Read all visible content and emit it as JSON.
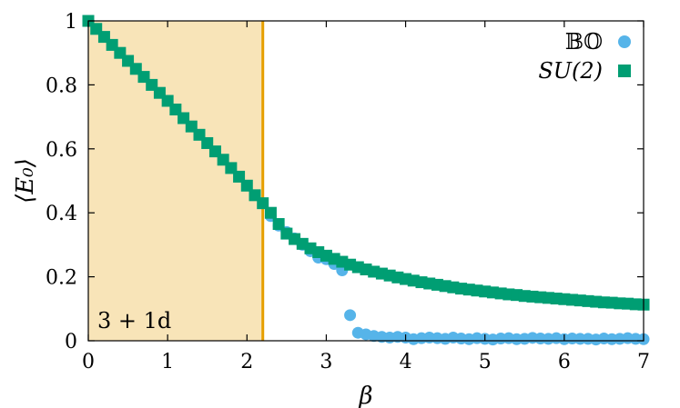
{
  "chart_data": {
    "type": "scatter",
    "title": "",
    "xlabel": "β",
    "ylabel": "⟨E₀⟩",
    "xlim": [
      0,
      7
    ],
    "ylim": [
      0,
      1
    ],
    "xticks": [
      "0",
      "1",
      "2",
      "3",
      "4",
      "5",
      "6",
      "7"
    ],
    "yticks": [
      "0",
      "0.2",
      "0.4",
      "0.6",
      "0.8",
      "1"
    ],
    "grid": false,
    "legend_placement": "top-right",
    "shaded_region": {
      "x_from": 0,
      "x_to": 2.2,
      "label": "3 + 1d",
      "fill": "#f8e4b8",
      "line_color": "#e69f00"
    },
    "series": [
      {
        "name": "𝔹𝕆",
        "marker": "circle",
        "color": "#56b4e9",
        "x": [
          2.3,
          2.4,
          2.5,
          2.6,
          2.7,
          2.8,
          2.9,
          3.0,
          3.1,
          3.2,
          3.3,
          3.4,
          3.5,
          3.6,
          3.7,
          3.8,
          3.9,
          4.0,
          4.1,
          4.2,
          4.3,
          4.4,
          4.5,
          4.6,
          4.7,
          4.8,
          4.9,
          5.0,
          5.1,
          5.2,
          5.3,
          5.4,
          5.5,
          5.6,
          5.7,
          5.8,
          5.9,
          6.0,
          6.1,
          6.2,
          6.3,
          6.4,
          6.5,
          6.6,
          6.7,
          6.8,
          6.9,
          7.0
        ],
        "y": [
          0.39,
          0.36,
          0.34,
          0.32,
          0.3,
          0.28,
          0.26,
          0.255,
          0.24,
          0.22,
          0.08,
          0.025,
          0.02,
          0.015,
          0.012,
          0.01,
          0.012,
          0.01,
          0.005,
          0.008,
          0.01,
          0.008,
          0.006,
          0.01,
          0.007,
          0.005,
          0.008,
          0.006,
          0.004,
          0.007,
          0.008,
          0.005,
          0.006,
          0.009,
          0.007,
          0.006,
          0.008,
          0.005,
          0.007,
          0.006,
          0.006,
          0.004,
          0.007,
          0.005,
          0.006,
          0.008,
          0.006,
          0.005
        ]
      },
      {
        "name": "SU(2)",
        "marker": "square",
        "color": "#009e73",
        "x": [
          0.0,
          0.1,
          0.2,
          0.3,
          0.4,
          0.5,
          0.6,
          0.7,
          0.8,
          0.9,
          1.0,
          1.1,
          1.2,
          1.3,
          1.4,
          1.5,
          1.6,
          1.7,
          1.8,
          1.9,
          2.0,
          2.1,
          2.2,
          2.3,
          2.4,
          2.5,
          2.6,
          2.7,
          2.8,
          2.9,
          3.0,
          3.1,
          3.2,
          3.3,
          3.4,
          3.5,
          3.6,
          3.7,
          3.8,
          3.9,
          4.0,
          4.1,
          4.2,
          4.3,
          4.4,
          4.5,
          4.6,
          4.7,
          4.8,
          4.9,
          5.0,
          5.1,
          5.2,
          5.3,
          5.4,
          5.5,
          5.6,
          5.7,
          5.8,
          5.9,
          6.0,
          6.1,
          6.2,
          6.3,
          6.4,
          6.5,
          6.6,
          6.7,
          6.8,
          6.9,
          7.0
        ],
        "y": [
          1.0,
          0.975,
          0.95,
          0.925,
          0.9,
          0.875,
          0.85,
          0.825,
          0.8,
          0.775,
          0.75,
          0.723,
          0.696,
          0.67,
          0.644,
          0.618,
          0.592,
          0.566,
          0.54,
          0.513,
          0.485,
          0.455,
          0.43,
          0.4,
          0.365,
          0.335,
          0.318,
          0.303,
          0.289,
          0.277,
          0.266,
          0.256,
          0.247,
          0.238,
          0.23,
          0.223,
          0.216,
          0.21,
          0.204,
          0.198,
          0.193,
          0.188,
          0.183,
          0.179,
          0.175,
          0.171,
          0.167,
          0.163,
          0.16,
          0.157,
          0.154,
          0.151,
          0.148,
          0.145,
          0.143,
          0.14,
          0.138,
          0.136,
          0.134,
          0.132,
          0.13,
          0.128,
          0.126,
          0.124,
          0.122,
          0.12,
          0.119,
          0.117,
          0.116,
          0.114,
          0.113
        ]
      }
    ]
  }
}
